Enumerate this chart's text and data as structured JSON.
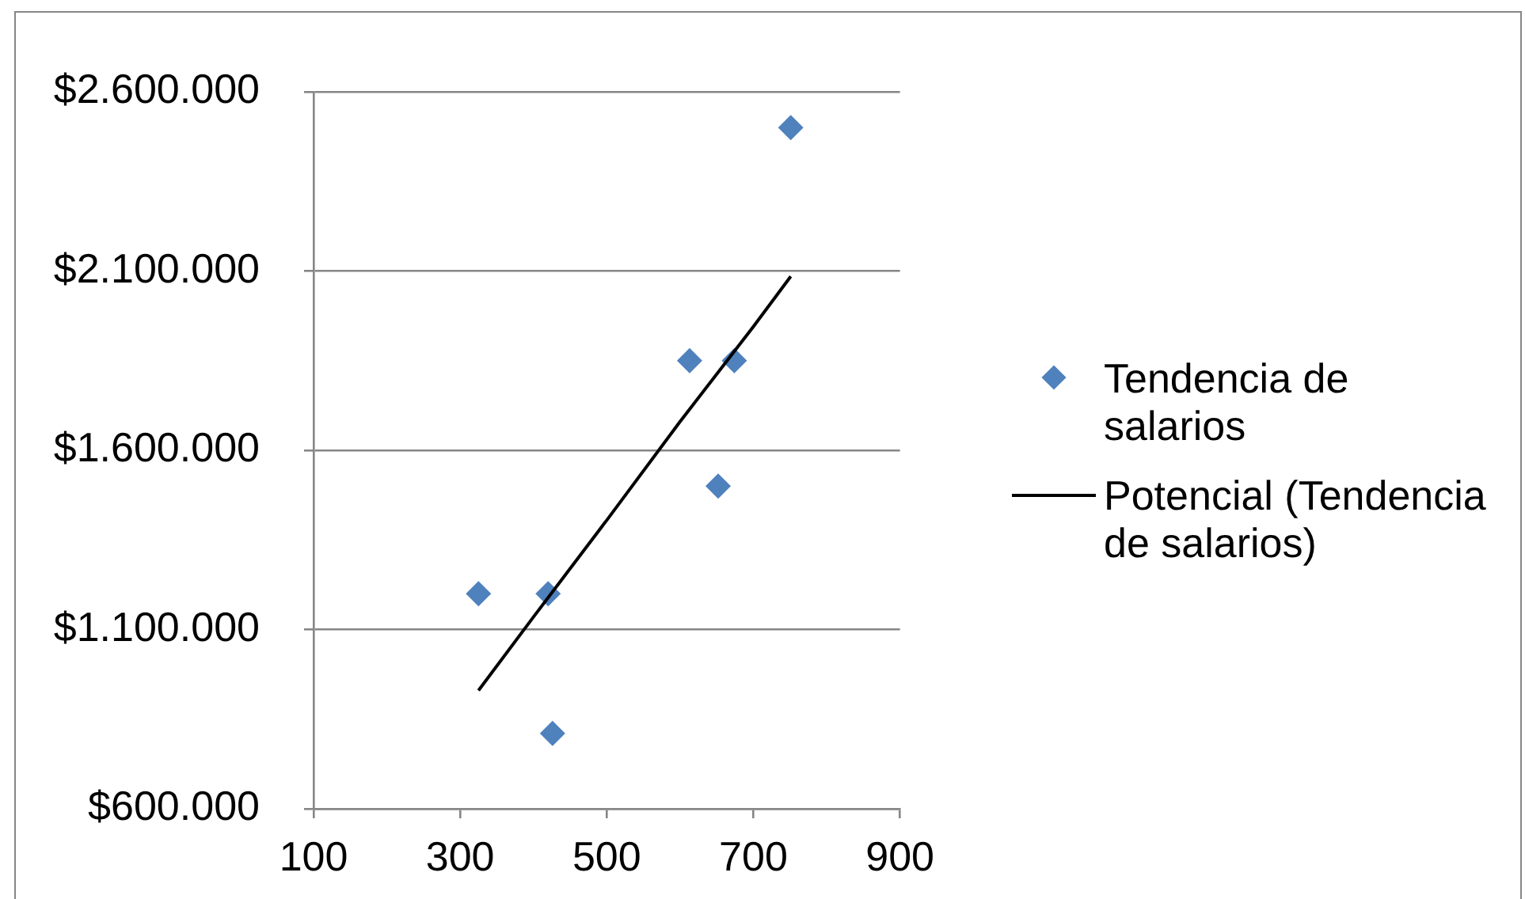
{
  "chart_data": {
    "type": "scatter",
    "series": [
      {
        "name": "Tendencia de salarios",
        "color": "#4f81bd",
        "marker": "diamond",
        "x": [
          325,
          420,
          426,
          613,
          652,
          674,
          751
        ],
        "values": [
          1200000,
          1200000,
          810000,
          1850000,
          1500000,
          1850000,
          2500000
        ]
      },
      {
        "name": "Potencial (Tendencia de salarios)",
        "type": "line",
        "color": "#000000",
        "marker": "none",
        "x": [
          325,
          400,
          500,
          600,
          700,
          751
        ],
        "values": [
          930000,
          1135000,
          1405000,
          1680000,
          1945000,
          2085000
        ]
      }
    ],
    "xlim": [
      100,
      900
    ],
    "xticks": [
      100,
      300,
      500,
      700,
      900
    ],
    "ylim": [
      600000,
      2600000
    ],
    "yticks": [
      {
        "value": 600000,
        "label": "$600.000"
      },
      {
        "value": 1100000,
        "label": "$1.100.000"
      },
      {
        "value": 1600000,
        "label": "$1.600.000"
      },
      {
        "value": 2100000,
        "label": "$2.100.000"
      },
      {
        "value": 2600000,
        "label": "$2.600.000"
      }
    ],
    "grid": "y",
    "legend": "right"
  }
}
